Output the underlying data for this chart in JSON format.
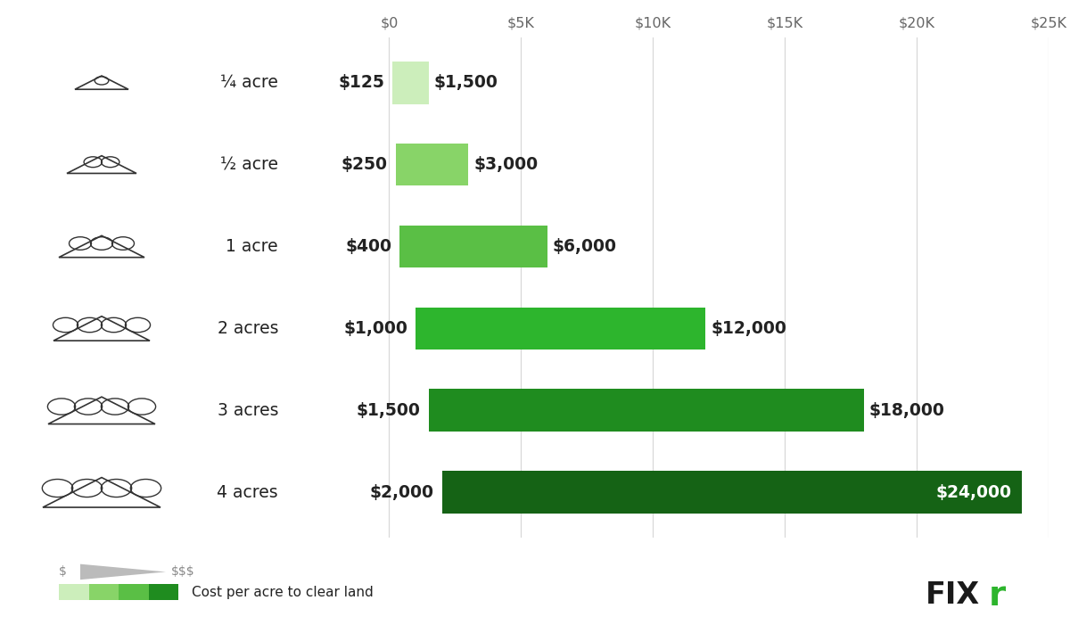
{
  "categories": [
    "¼ acre",
    "½ acre",
    "1 acre",
    "2 acres",
    "3 acres",
    "4 acres"
  ],
  "min_values": [
    125,
    250,
    400,
    1000,
    1500,
    2000
  ],
  "max_values": [
    1500,
    3000,
    6000,
    12000,
    18000,
    24000
  ],
  "min_labels": [
    "$125",
    "$250",
    "$400",
    "$1,000",
    "$1,500",
    "$2,000"
  ],
  "max_labels": [
    "$1,500",
    "$3,000",
    "$6,000",
    "$12,000",
    "$18,000",
    "$24,000"
  ],
  "bar_colors": [
    "#cceebb",
    "#88d468",
    "#5abf45",
    "#2db52d",
    "#1f8c1f",
    "#156315"
  ],
  "axis_max": 25000,
  "tick_values": [
    0,
    5000,
    10000,
    15000,
    20000,
    25000
  ],
  "tick_labels": [
    "$0",
    "$5K",
    "$10K",
    "$15K",
    "$20K",
    "$25K"
  ],
  "background_color": "#ffffff",
  "bar_height": 0.52,
  "label_fontsize": 13.5,
  "category_fontsize": 13.5,
  "tick_fontsize": 11.5,
  "grid_color": "#d8d8d8",
  "text_color": "#222222",
  "legend_colors": [
    "#cceebb",
    "#88d468",
    "#5abf45",
    "#1f8c1f"
  ],
  "legend_label": "Cost per acre to clear land",
  "legend_dollar_label_left": "$",
  "legend_dollar_label_right": "$$$",
  "max_label_inside_color": "#ffffff",
  "last_bar_index": 5
}
